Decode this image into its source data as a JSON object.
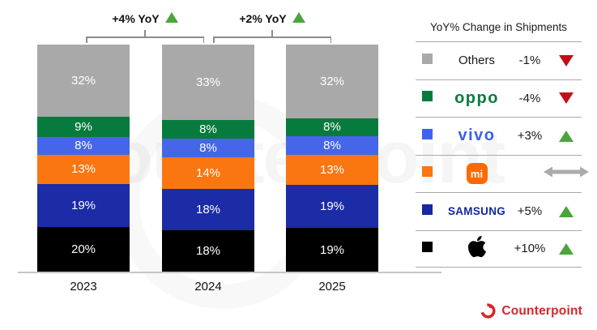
{
  "chart_data": {
    "type": "bar",
    "subtype": "stacked-100",
    "categories": [
      "2023",
      "2024",
      "2025"
    ],
    "series": [
      {
        "name": "Others",
        "color": "#a9a9a9",
        "values": [
          32,
          33,
          32
        ]
      },
      {
        "name": "OPPO",
        "color": "#077b3e",
        "values": [
          9,
          8,
          8
        ]
      },
      {
        "name": "vivo",
        "color": "#4566e9",
        "values": [
          8,
          8,
          8
        ]
      },
      {
        "name": "Xiaomi",
        "color": "#f97611",
        "values": [
          13,
          14,
          13
        ]
      },
      {
        "name": "Samsung",
        "color": "#1b2ca6",
        "values": [
          19,
          18,
          19
        ]
      },
      {
        "name": "Apple",
        "color": "#000000",
        "values": [
          20,
          18,
          19
        ]
      }
    ],
    "stack_order": "top-to-bottom",
    "value_suffix": "%",
    "ylim": [
      0,
      100
    ],
    "grid": false,
    "legend_position": "right",
    "annotations": [
      {
        "label": "+4% YoY",
        "direction": "up",
        "between": [
          "2023",
          "2024"
        ]
      },
      {
        "label": "+2% YoY",
        "direction": "up",
        "between": [
          "2024",
          "2025"
        ]
      }
    ]
  },
  "legend": {
    "title": "YoY% Change in Shipments",
    "rows": [
      {
        "brand": "Others",
        "logo": "plain",
        "swatch": "#a9a9a9",
        "change": "-1%",
        "direction": "down"
      },
      {
        "brand": "oppo",
        "logo": "oppo",
        "swatch": "#077b3e",
        "change": "-4%",
        "direction": "down"
      },
      {
        "brand": "vivo",
        "logo": "vivo",
        "swatch": "#3f63f0",
        "change": "+3%",
        "direction": "up"
      },
      {
        "brand": "mi",
        "logo": "mi",
        "swatch": "#f97611",
        "change": "",
        "direction": "flat"
      },
      {
        "brand": "SAMSUNG",
        "logo": "samsung",
        "swatch": "#1428a0",
        "change": "+5%",
        "direction": "up"
      },
      {
        "brand": "Apple",
        "logo": "apple",
        "swatch": "#000000",
        "change": "+10%",
        "direction": "up"
      }
    ]
  },
  "colors": {
    "up": "#4ba53c",
    "down": "#c40d1a",
    "flat_arrow": "#ababab",
    "brand_red": "#d9252e"
  },
  "footer": {
    "brand": "Counterpoint"
  },
  "watermark": {
    "text": "counterpoint"
  }
}
